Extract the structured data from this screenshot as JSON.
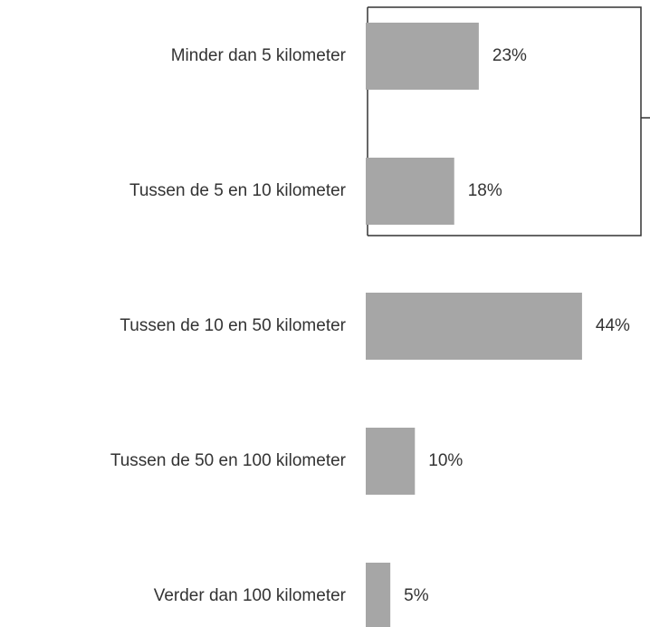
{
  "chart_data": {
    "type": "bar",
    "orientation": "horizontal",
    "categories": [
      "Minder dan 5 kilometer",
      "Tussen de 5 en 10 kilometer",
      "Tussen de 10 en 50 kilometer",
      "Tussen de 50 en 100 kilometer",
      "Verder dan 100 kilometer"
    ],
    "values": [
      23,
      18,
      44,
      10,
      5
    ],
    "value_labels": [
      "23%",
      "18%",
      "44%",
      "10%",
      "5%"
    ],
    "color": "#a6a6a6"
  }
}
